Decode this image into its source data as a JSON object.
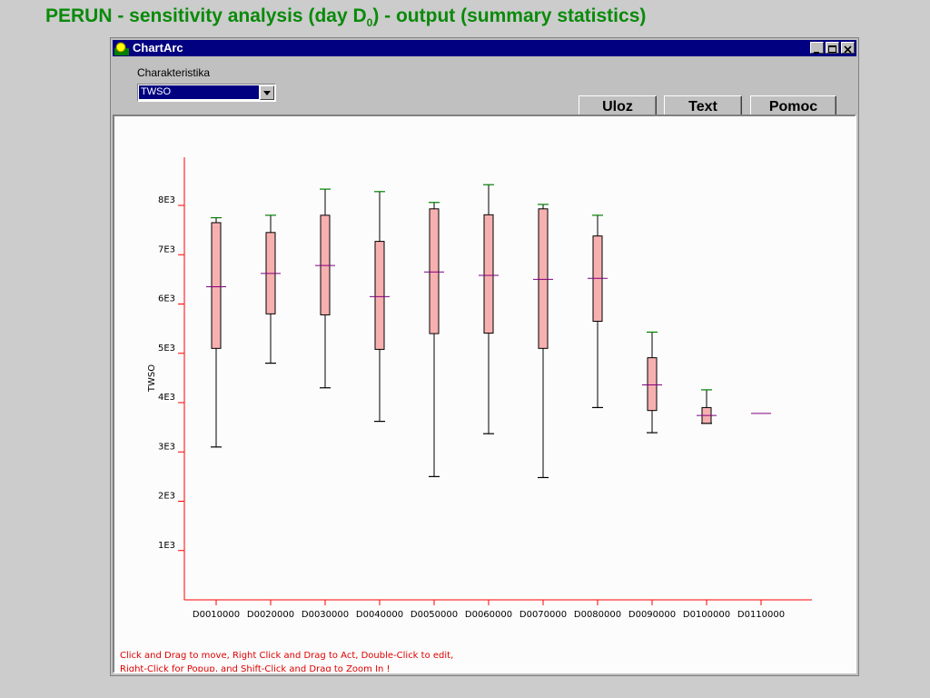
{
  "slide": {
    "title": "PERUN - sensitivity analysis (day D",
    "title_sub": "0",
    "title_suffix": ") - output (summary statistics)"
  },
  "window": {
    "title": "ChartArc"
  },
  "toolbar": {
    "combo_label": "Charakteristika",
    "combo_value": "TWSO",
    "save_label": "Uloz",
    "text_label": "Text",
    "help_label": "Pomoc"
  },
  "colors": {
    "box_fill": "#f7b0b0",
    "whisker_cap": "#008000",
    "median": "#800080",
    "axis": "#ff0000",
    "hint_text": "#e00000"
  },
  "hint": {
    "line1": "Click and Drag to move, Right Click and Drag to Act, Double-Click to edit,",
    "line2": "Right-Click for Popup, and Shift-Click and Drag to Zoom In !"
  },
  "chart_data": {
    "type": "box",
    "ylabel": "TWSO",
    "yticks": [
      {
        "value": 1000,
        "label": "1E3"
      },
      {
        "value": 2000,
        "label": "2E3"
      },
      {
        "value": 3000,
        "label": "3E3"
      },
      {
        "value": 4000,
        "label": "4E3"
      },
      {
        "value": 5000,
        "label": "5E3"
      },
      {
        "value": 6000,
        "label": "6E3"
      },
      {
        "value": 7000,
        "label": "7E3"
      },
      {
        "value": 8000,
        "label": "8E3"
      }
    ],
    "ylim": [
      0,
      8900
    ],
    "categories": [
      "D0010000",
      "D0020000",
      "D0030000",
      "D0040000",
      "D0050000",
      "D0060000",
      "D0070000",
      "D0080000",
      "D0090000",
      "D0100000",
      "D0110000"
    ],
    "boxes": [
      {
        "min": 3100,
        "q1": 5100,
        "median": 6350,
        "q3": 7650,
        "max": 7750
      },
      {
        "min": 4800,
        "q1": 5800,
        "median": 6620,
        "q3": 7450,
        "max": 7800
      },
      {
        "min": 4300,
        "q1": 5780,
        "median": 6780,
        "q3": 7800,
        "max": 8330
      },
      {
        "min": 3620,
        "q1": 5080,
        "median": 6150,
        "q3": 7270,
        "max": 8280
      },
      {
        "min": 2500,
        "q1": 5400,
        "median": 6650,
        "q3": 7930,
        "max": 8060
      },
      {
        "min": 3370,
        "q1": 5410,
        "median": 6580,
        "q3": 7810,
        "max": 8420
      },
      {
        "min": 2480,
        "q1": 5100,
        "median": 6500,
        "q3": 7930,
        "max": 8020
      },
      {
        "min": 3900,
        "q1": 5650,
        "median": 6520,
        "q3": 7380,
        "max": 7800
      },
      {
        "min": 3390,
        "q1": 3840,
        "median": 4360,
        "q3": 4910,
        "max": 5430
      },
      {
        "min": 3580,
        "q1": 3580,
        "median": 3740,
        "q3": 3900,
        "max": 4260
      },
      {
        "min": 3780,
        "q1": 3780,
        "median": 3780,
        "q3": 3780,
        "max": 3780
      }
    ]
  }
}
